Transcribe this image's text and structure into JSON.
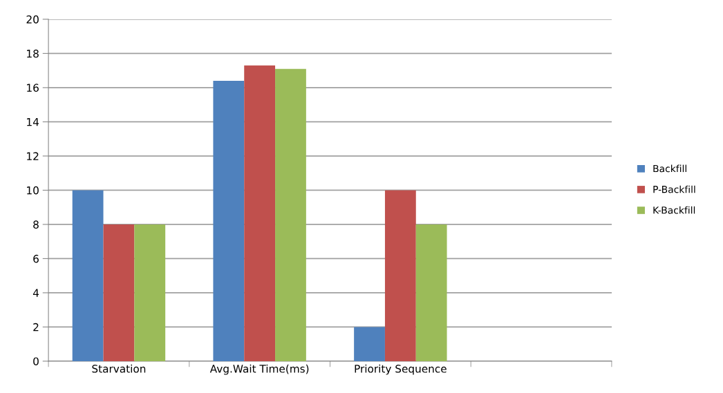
{
  "chart_data": {
    "type": "bar",
    "categories": [
      "Starvation",
      "Avg.Wait Time(ms)",
      "Priority Sequence",
      null
    ],
    "series": [
      {
        "name": "Backfill",
        "color": "#4f81bd",
        "values": [
          10,
          16.4,
          2,
          null
        ]
      },
      {
        "name": "P-Backfill",
        "color": "#c0504d",
        "values": [
          8,
          17.3,
          10,
          null
        ]
      },
      {
        "name": "K-Backfill",
        "color": "#9bbb59",
        "values": [
          8,
          17.1,
          8,
          null
        ]
      }
    ],
    "ylim": [
      0,
      20
    ],
    "yticks": [
      0,
      2,
      4,
      6,
      8,
      10,
      12,
      14,
      16,
      18,
      20
    ],
    "grid": "y",
    "legend": "right"
  }
}
